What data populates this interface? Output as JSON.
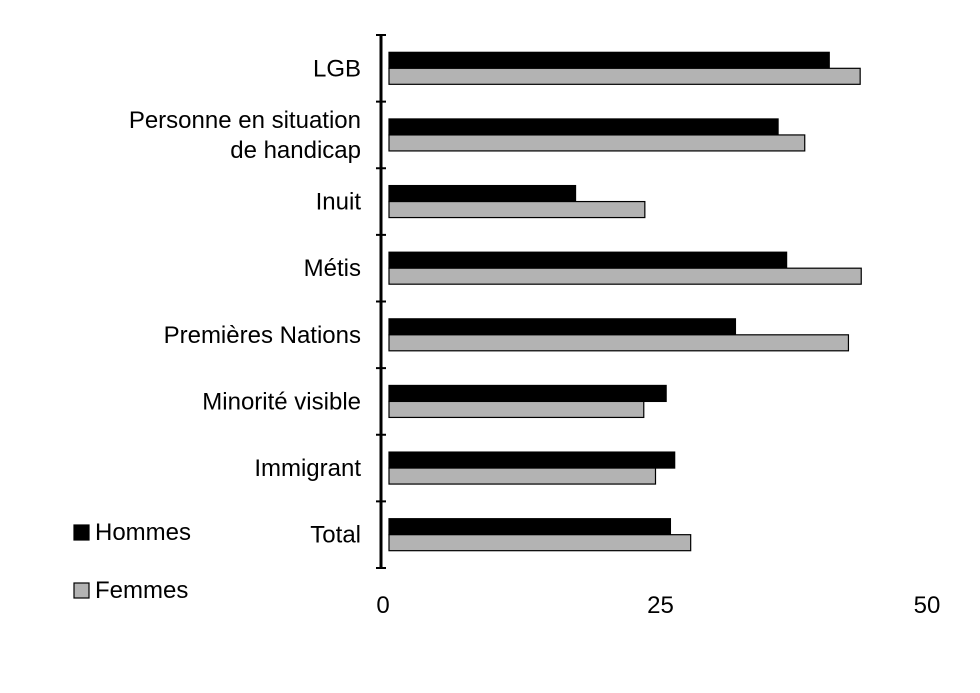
{
  "chart_data": {
    "type": "bar",
    "orientation": "horizontal",
    "categories": [
      "LGB",
      "Personne en situation de handicap",
      "Inuit",
      "Métis",
      "Premières Nations",
      "Minorité visible",
      "Immigrant",
      "Total"
    ],
    "category_lines": [
      [
        "LGB"
      ],
      [
        "Personne en situation",
        "de handicap"
      ],
      [
        "Inuit"
      ],
      [
        "Métis"
      ],
      [
        "Premières Nations"
      ],
      [
        "Minorité visible"
      ],
      [
        "Immigrant"
      ],
      [
        "Total"
      ]
    ],
    "series": [
      {
        "name": "Hommes",
        "color": "#000000",
        "values": [
          41.3,
          36.5,
          17.5,
          37.3,
          32.5,
          26.0,
          26.8,
          26.4
        ]
      },
      {
        "name": "Femmes",
        "color": "#b3b3b3",
        "values": [
          44.2,
          39.0,
          24.0,
          44.3,
          43.1,
          23.9,
          25.0,
          28.3
        ]
      }
    ],
    "xlim": [
      0,
      50
    ],
    "x_ticks": [
      "0",
      "25",
      "50"
    ],
    "grid": false,
    "legend_position": "bottom-left",
    "title": "",
    "xlabel": "",
    "ylabel": ""
  }
}
